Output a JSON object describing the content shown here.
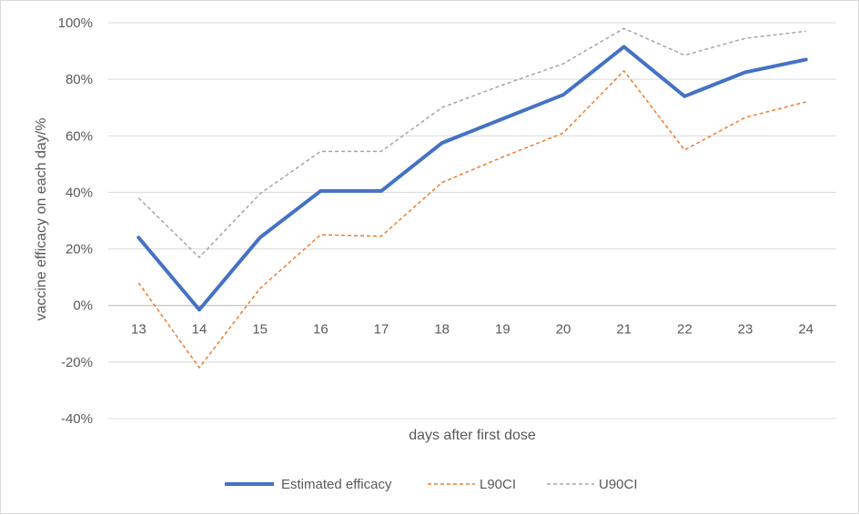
{
  "chart_data": {
    "type": "line",
    "title": "",
    "xlabel": "days after first dose",
    "ylabel": "vaccine efficacy on each day/%",
    "x": [
      13,
      14,
      15,
      16,
      17,
      18,
      19,
      20,
      21,
      22,
      23,
      24
    ],
    "ylim": [
      -40,
      100
    ],
    "yticks": [
      -40,
      -20,
      0,
      20,
      40,
      60,
      80,
      100
    ],
    "ytick_labels": [
      "-40%",
      "-20%",
      "0%",
      "20%",
      "40%",
      "60%",
      "80%",
      "100%"
    ],
    "grid": "horizontal",
    "legend_position": "bottom",
    "series": [
      {
        "name": "Estimated efficacy",
        "color": "#4472c4",
        "style": "solid",
        "values": [
          24,
          -1.5,
          24,
          40.5,
          40.5,
          57.5,
          66,
          74.5,
          91.5,
          74,
          82.5,
          87
        ]
      },
      {
        "name": "L90CI",
        "color": "#ed7d31",
        "style": "dashed",
        "values": [
          8,
          -22,
          6,
          25,
          24.5,
          43.5,
          52.5,
          61,
          83,
          55,
          66.5,
          72
        ]
      },
      {
        "name": "U90CI",
        "color": "#a5a5a5",
        "style": "dashed",
        "values": [
          38,
          17,
          39.5,
          54.5,
          54.5,
          70,
          78,
          85.5,
          98,
          88.5,
          94.5,
          97
        ]
      }
    ]
  }
}
